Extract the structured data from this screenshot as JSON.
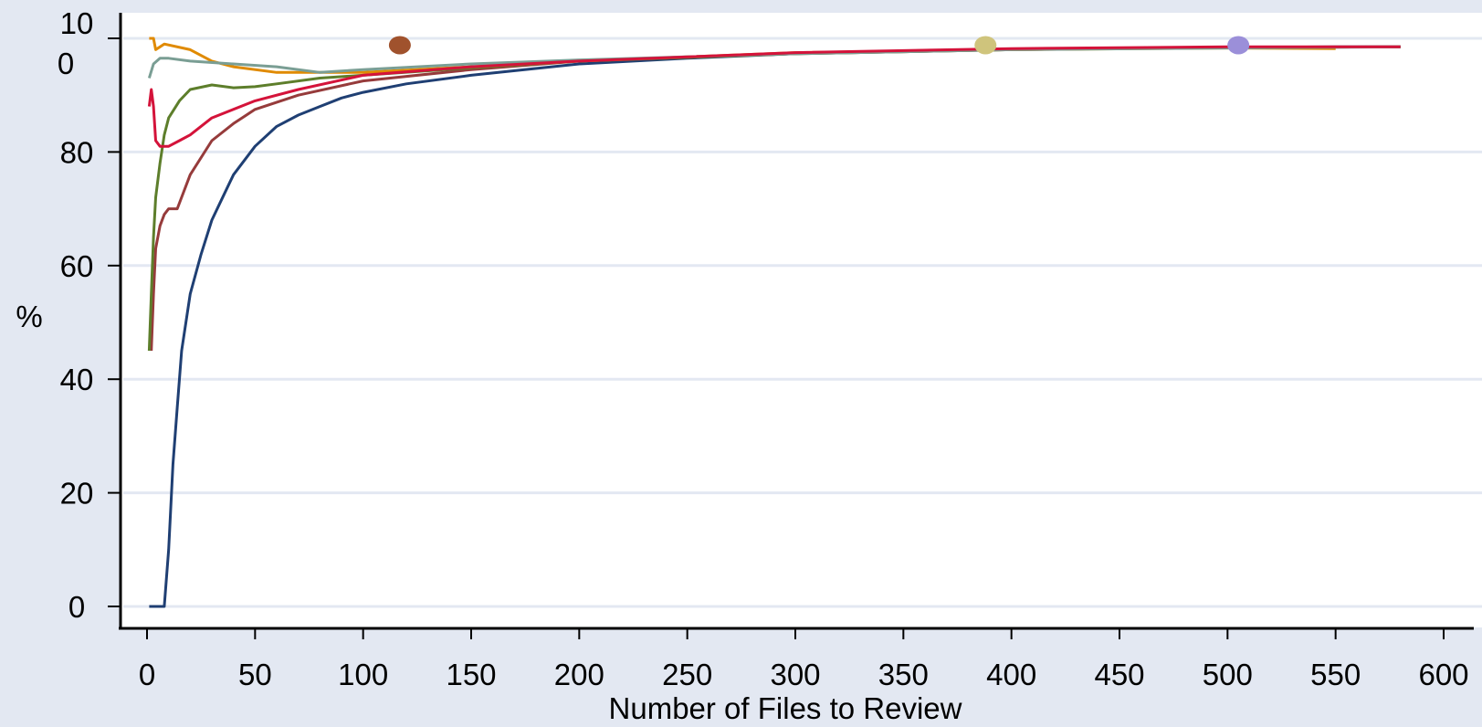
{
  "chart_data": {
    "type": "line",
    "title": "",
    "xlabel": "Number of Files to Review",
    "ylabel": "%",
    "xlim": [
      0,
      600
    ],
    "ylim": [
      0,
      100
    ],
    "grid": true,
    "x_ticks": [
      0,
      50,
      100,
      150,
      200,
      250,
      300,
      350,
      400,
      450,
      500,
      550,
      600
    ],
    "y_ticks": [
      0,
      20,
      40,
      60,
      80
    ],
    "y_top_tick_label": [
      "10",
      "0"
    ],
    "background_color": "#e3e8f2",
    "plot_background_color": "#ffffff",
    "gridline_color": "#e3e8f2",
    "series": [
      {
        "color": "#1f3f73",
        "x": [
          1,
          8,
          10,
          12,
          14,
          16,
          18,
          20,
          25,
          30,
          35,
          40,
          50,
          60,
          70,
          80,
          90,
          100,
          120,
          150,
          200,
          250,
          300,
          350,
          400,
          450,
          500,
          550,
          580
        ],
        "y": [
          0,
          0,
          10,
          25,
          35,
          45,
          50,
          55,
          62,
          68,
          72,
          76,
          81,
          84.5,
          86.5,
          88,
          89.5,
          90.5,
          92,
          93.5,
          95.5,
          96.5,
          97.3,
          97.8,
          98.1,
          98.3,
          98.4,
          98.5,
          98.5
        ]
      },
      {
        "color": "#963b3b",
        "x": [
          2,
          3,
          4,
          6,
          8,
          10,
          14,
          20,
          30,
          40,
          50,
          70,
          100,
          150,
          200,
          300,
          400,
          500,
          580
        ],
        "y": [
          45,
          55,
          63,
          67,
          69,
          70,
          70,
          76,
          82,
          85,
          87.5,
          90,
          92.5,
          94.5,
          96,
          97.3,
          98,
          98.4,
          98.5
        ]
      },
      {
        "color": "#5d7e2b",
        "x": [
          1,
          2,
          3,
          4,
          6,
          8,
          10,
          15,
          20,
          30,
          40,
          50,
          60,
          80,
          100,
          150,
          200,
          300,
          400,
          500,
          580
        ],
        "y": [
          45,
          55,
          65,
          72,
          78,
          83,
          86,
          89,
          91,
          91.8,
          91.3,
          91.5,
          92,
          93,
          93.5,
          94.8,
          96,
          97.3,
          98,
          98.4,
          98.5
        ]
      },
      {
        "color": "#e08a00",
        "x": [
          1,
          3,
          4,
          8,
          20,
          30,
          40,
          60,
          100,
          150,
          200,
          300,
          400,
          500,
          550
        ],
        "y": [
          100,
          100,
          98,
          99,
          98,
          96,
          95,
          94,
          94,
          95,
          96,
          97.5,
          98,
          98.3,
          98.2
        ]
      },
      {
        "color": "#7a9e94",
        "x": [
          1,
          3,
          6,
          10,
          20,
          40,
          60,
          80,
          100,
          150,
          200,
          300,
          400,
          500,
          580
        ],
        "y": [
          93,
          95.5,
          96.5,
          96.5,
          96,
          95.5,
          95,
          94,
          94.5,
          95.5,
          96.2,
          97.3,
          98,
          98.3,
          98.5
        ]
      },
      {
        "color": "#d4133a",
        "x": [
          1,
          2,
          3,
          4,
          6,
          10,
          15,
          20,
          30,
          50,
          70,
          100,
          150,
          200,
          300,
          400,
          500,
          580
        ],
        "y": [
          88,
          91,
          88,
          82,
          81,
          81,
          82,
          83,
          86,
          89,
          91,
          93.5,
          95,
          96,
          97.5,
          98.2,
          98.5,
          98.5
        ]
      }
    ],
    "markers": [
      {
        "x": 117,
        "y": 98.8,
        "color": "#a0522d"
      },
      {
        "x": 388,
        "y": 98.8,
        "color": "#cfc47c"
      },
      {
        "x": 505,
        "y": 98.8,
        "color": "#9b8fd9"
      }
    ]
  }
}
